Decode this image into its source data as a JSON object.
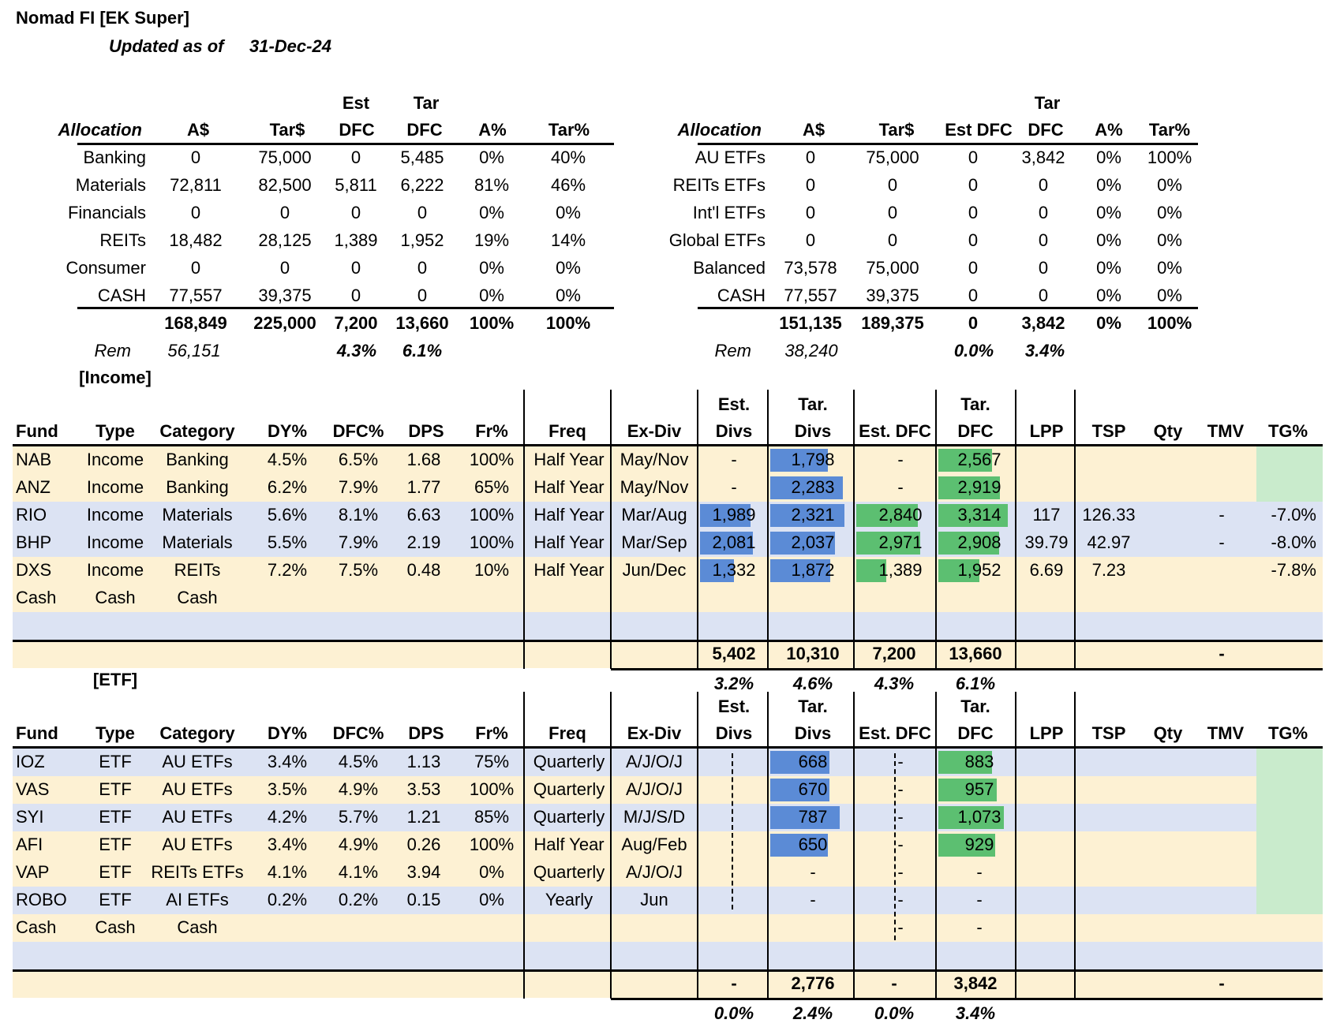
{
  "title": "Nomad FI [EK Super]",
  "updated_label": "Updated as of",
  "updated_date": "31-Dec-24",
  "alloc_left": {
    "headers": {
      "allocation": "Allocation",
      "a": "A$",
      "tar": "Tar$",
      "est1": "Est",
      "est2": "DFC",
      "tar1": "Tar",
      "tar2": "DFC",
      "ap": "A%",
      "tp": "Tar%"
    },
    "rows": [
      [
        "Banking",
        "0",
        "75,000",
        "0",
        "5,485",
        "0%",
        "40%"
      ],
      [
        "Materials",
        "72,811",
        "82,500",
        "5,811",
        "6,222",
        "81%",
        "46%"
      ],
      [
        "Financials",
        "0",
        "0",
        "0",
        "0",
        "0%",
        "0%"
      ],
      [
        "REITs",
        "18,482",
        "28,125",
        "1,389",
        "1,952",
        "19%",
        "14%"
      ],
      [
        "Consumer",
        "0",
        "0",
        "0",
        "0",
        "0%",
        "0%"
      ],
      [
        "CASH",
        "77,557",
        "39,375",
        "0",
        "0",
        "0%",
        "0%"
      ]
    ],
    "total": [
      "168,849",
      "225,000",
      "7,200",
      "13,660",
      "100%",
      "100%"
    ],
    "rem_label": "Rem",
    "rem": [
      "56,151",
      "4.3%",
      "6.1%"
    ]
  },
  "alloc_right": {
    "headers": {
      "allocation": "Allocation",
      "a": "A$",
      "tar": "Tar$",
      "est": "Est DFC",
      "tar1": "Tar",
      "tar2": "DFC",
      "ap": "A%",
      "tp": "Tar%"
    },
    "rows": [
      [
        "AU ETFs",
        "0",
        "75,000",
        "0",
        "3,842",
        "0%",
        "100%"
      ],
      [
        "REITs ETFs",
        "0",
        "0",
        "0",
        "0",
        "0%",
        "0%"
      ],
      [
        "Int'l ETFs",
        "0",
        "0",
        "0",
        "0",
        "0%",
        "0%"
      ],
      [
        "Global ETFs",
        "0",
        "0",
        "0",
        "0",
        "0%",
        "0%"
      ],
      [
        "Balanced",
        "73,578",
        "75,000",
        "0",
        "0",
        "0%",
        "0%"
      ],
      [
        "CASH",
        "77,557",
        "39,375",
        "0",
        "0",
        "0%",
        "0%"
      ]
    ],
    "total": [
      "151,135",
      "189,375",
      "0",
      "3,842",
      "0%",
      "100%"
    ],
    "rem_label": "Rem",
    "rem": [
      "38,240",
      "0.0%",
      "3.4%"
    ]
  },
  "income": {
    "section": "[Income]",
    "headers": {
      "fund": "Fund",
      "type": "Type",
      "category": "Category",
      "dy": "DY%",
      "dfc": "DFC%",
      "dps": "DPS",
      "fr": "Fr%",
      "freq": "Freq",
      "exdiv": "Ex-Div",
      "estdivs1": "Est.",
      "estdivs2": "Divs",
      "tardivs1": "Tar.",
      "tardivs2": "Divs",
      "estdfc": "Est. DFC",
      "tardfc1": "Tar.",
      "tardfc2": "DFC",
      "lpp": "LPP",
      "tsp": "TSP",
      "qty": "Qty",
      "tmv": "TMV",
      "tg": "TG%"
    },
    "rows": [
      {
        "fund": "NAB",
        "type": "Income",
        "category": "Banking",
        "dy": "4.5%",
        "dfc": "6.5%",
        "dps": "1.68",
        "fr": "100%",
        "freq": "Half Year",
        "exdiv": "May/Nov",
        "estdivs": "-",
        "tardivs": "1,798",
        "estdfc": "-",
        "tardfc": "2,567",
        "lpp": "",
        "tsp": "",
        "qty": "",
        "tmv": "",
        "tg": "",
        "tardivs_v": 1798,
        "tardfc_v": 2567,
        "estdivs_v": 0,
        "estdfc_v": 0
      },
      {
        "fund": "ANZ",
        "type": "Income",
        "category": "Banking",
        "dy": "6.2%",
        "dfc": "7.9%",
        "dps": "1.77",
        "fr": "65%",
        "freq": "Half Year",
        "exdiv": "May/Nov",
        "estdivs": "-",
        "tardivs": "2,283",
        "estdfc": "-",
        "tardfc": "2,919",
        "lpp": "",
        "tsp": "",
        "qty": "",
        "tmv": "",
        "tg": "",
        "tardivs_v": 2283,
        "tardfc_v": 2919,
        "estdivs_v": 0,
        "estdfc_v": 0
      },
      {
        "fund": "RIO",
        "type": "Income",
        "category": "Materials",
        "dy": "5.6%",
        "dfc": "8.1%",
        "dps": "6.63",
        "fr": "100%",
        "freq": "Half Year",
        "exdiv": "Mar/Aug",
        "estdivs": "1,989",
        "tardivs": "2,321",
        "estdfc": "2,840",
        "tardfc": "3,314",
        "lpp": "117",
        "tsp": "126.33",
        "qty": "-",
        "tmv": "",
        "tg": "-7.0%",
        "tardivs_v": 2321,
        "tardfc_v": 3314,
        "estdivs_v": 1989,
        "estdfc_v": 2840
      },
      {
        "fund": "BHP",
        "type": "Income",
        "category": "Materials",
        "dy": "5.5%",
        "dfc": "7.9%",
        "dps": "2.19",
        "fr": "100%",
        "freq": "Half Year",
        "exdiv": "Mar/Sep",
        "estdivs": "2,081",
        "tardivs": "2,037",
        "estdfc": "2,971",
        "tardfc": "2,908",
        "lpp": "39.79",
        "tsp": "42.97",
        "qty": "-",
        "tmv": "",
        "tg": "-8.0%",
        "tardivs_v": 2037,
        "tardfc_v": 2908,
        "estdivs_v": 2081,
        "estdfc_v": 2971
      },
      {
        "fund": "DXS",
        "type": "Income",
        "category": "REITs",
        "dy": "7.2%",
        "dfc": "7.5%",
        "dps": "0.48",
        "fr": "10%",
        "freq": "Half Year",
        "exdiv": "Jun/Dec",
        "estdivs": "1,332",
        "tardivs": "1,872",
        "estdfc": "1,389",
        "tardfc": "1,952",
        "lpp": "6.69",
        "tsp": "7.23",
        "qty": "",
        "tmv": "",
        "tg": "-7.8%",
        "tardivs_v": 1872,
        "tardfc_v": 1952,
        "estdivs_v": 1332,
        "estdfc_v": 1389
      },
      {
        "fund": "Cash",
        "type": "Cash",
        "category": "Cash",
        "dy": "",
        "dfc": "",
        "dps": "",
        "fr": "",
        "freq": "",
        "exdiv": "",
        "estdivs": "",
        "tardivs": "",
        "estdfc": "",
        "tardfc": "",
        "lpp": "",
        "tsp": "",
        "qty": "",
        "tmv": "",
        "tg": "",
        "tardivs_v": 0,
        "tardfc_v": 0,
        "estdivs_v": 0,
        "estdfc_v": 0
      }
    ],
    "totals": {
      "estdivs": "5,402",
      "tardivs": "10,310",
      "estdfc": "7,200",
      "tardfc": "13,660",
      "qty": "-"
    },
    "pcts": {
      "estdivs": "3.2%",
      "tardivs": "4.6%",
      "estdfc": "4.3%",
      "tardfc": "6.1%"
    }
  },
  "etf": {
    "section": "[ETF]",
    "headers": {
      "fund": "Fund",
      "type": "Type",
      "category": "Category",
      "dy": "DY%",
      "dfc": "DFC%",
      "dps": "DPS",
      "fr": "Fr%",
      "freq": "Freq",
      "exdiv": "Ex-Div",
      "estdivs1": "Est.",
      "estdivs2": "Divs",
      "tardivs1": "Tar.",
      "tardivs2": "Divs",
      "estdfc": "Est. DFC",
      "tardfc1": "Tar.",
      "tardfc2": "DFC",
      "lpp": "LPP",
      "tsp": "TSP",
      "qty": "Qty",
      "tmv": "TMV",
      "tg": "TG%"
    },
    "rows": [
      {
        "fund": "IOZ",
        "type": "ETF",
        "category": "AU ETFs",
        "dy": "3.4%",
        "dfc": "4.5%",
        "dps": "1.13",
        "fr": "75%",
        "freq": "Quarterly",
        "exdiv": "A/J/O/J",
        "estdivs": "",
        "tardivs": "668",
        "estdfc": "-",
        "tardfc": "883",
        "tardivs_v": 668,
        "tardfc_v": 883
      },
      {
        "fund": "VAS",
        "type": "ETF",
        "category": "AU ETFs",
        "dy": "3.5%",
        "dfc": "4.9%",
        "dps": "3.53",
        "fr": "100%",
        "freq": "Quarterly",
        "exdiv": "A/J/O/J",
        "estdivs": "",
        "tardivs": "670",
        "estdfc": "-",
        "tardfc": "957",
        "tardivs_v": 670,
        "tardfc_v": 957
      },
      {
        "fund": "SYI",
        "type": "ETF",
        "category": "AU ETFs",
        "dy": "4.2%",
        "dfc": "5.7%",
        "dps": "1.21",
        "fr": "85%",
        "freq": "Quarterly",
        "exdiv": "M/J/S/D",
        "estdivs": "",
        "tardivs": "787",
        "estdfc": "-",
        "tardfc": "1,073",
        "tardivs_v": 787,
        "tardfc_v": 1073
      },
      {
        "fund": "AFI",
        "type": "ETF",
        "category": "AU ETFs",
        "dy": "3.4%",
        "dfc": "4.9%",
        "dps": "0.26",
        "fr": "100%",
        "freq": "Half Year",
        "exdiv": "Aug/Feb",
        "estdivs": "",
        "tardivs": "650",
        "estdfc": "-",
        "tardfc": "929",
        "tardivs_v": 650,
        "tardfc_v": 929
      },
      {
        "fund": "VAP",
        "type": "ETF",
        "category": "REITs ETFs",
        "dy": "4.1%",
        "dfc": "4.1%",
        "dps": "3.94",
        "fr": "0%",
        "freq": "Quarterly",
        "exdiv": "A/J/O/J",
        "estdivs": "",
        "tardivs": "-",
        "estdfc": "-",
        "tardfc": "-",
        "tardivs_v": 0,
        "tardfc_v": 0
      },
      {
        "fund": "ROBO",
        "type": "ETF",
        "category": "AI ETFs",
        "dy": "0.2%",
        "dfc": "0.2%",
        "dps": "0.15",
        "fr": "0%",
        "freq": "Yearly",
        "exdiv": "Jun",
        "estdivs": "",
        "tardivs": "-",
        "estdfc": "-",
        "tardfc": "-",
        "tardivs_v": 0,
        "tardfc_v": 0
      },
      {
        "fund": "Cash",
        "type": "Cash",
        "category": "Cash",
        "dy": "",
        "dfc": "",
        "dps": "",
        "fr": "",
        "freq": "",
        "exdiv": "",
        "estdivs": "",
        "tardivs": "",
        "estdfc": "-",
        "tardfc": "-",
        "tardivs_v": 0,
        "tardfc_v": 0
      }
    ],
    "totals": {
      "estdivs": "-",
      "tardivs": "2,776",
      "estdfc": "-",
      "tardfc": "3,842",
      "qty": "-"
    },
    "pcts": {
      "estdivs": "0.0%",
      "tardivs": "2.4%",
      "estdfc": "0.0%",
      "tardfc": "3.4%"
    }
  },
  "colors": {
    "yellow": "#fdf1d3",
    "blue": "#dce3f3",
    "green": "#c9ebcc",
    "bar_blue": "#5b8bd6",
    "bar_green": "#5cbf71"
  }
}
